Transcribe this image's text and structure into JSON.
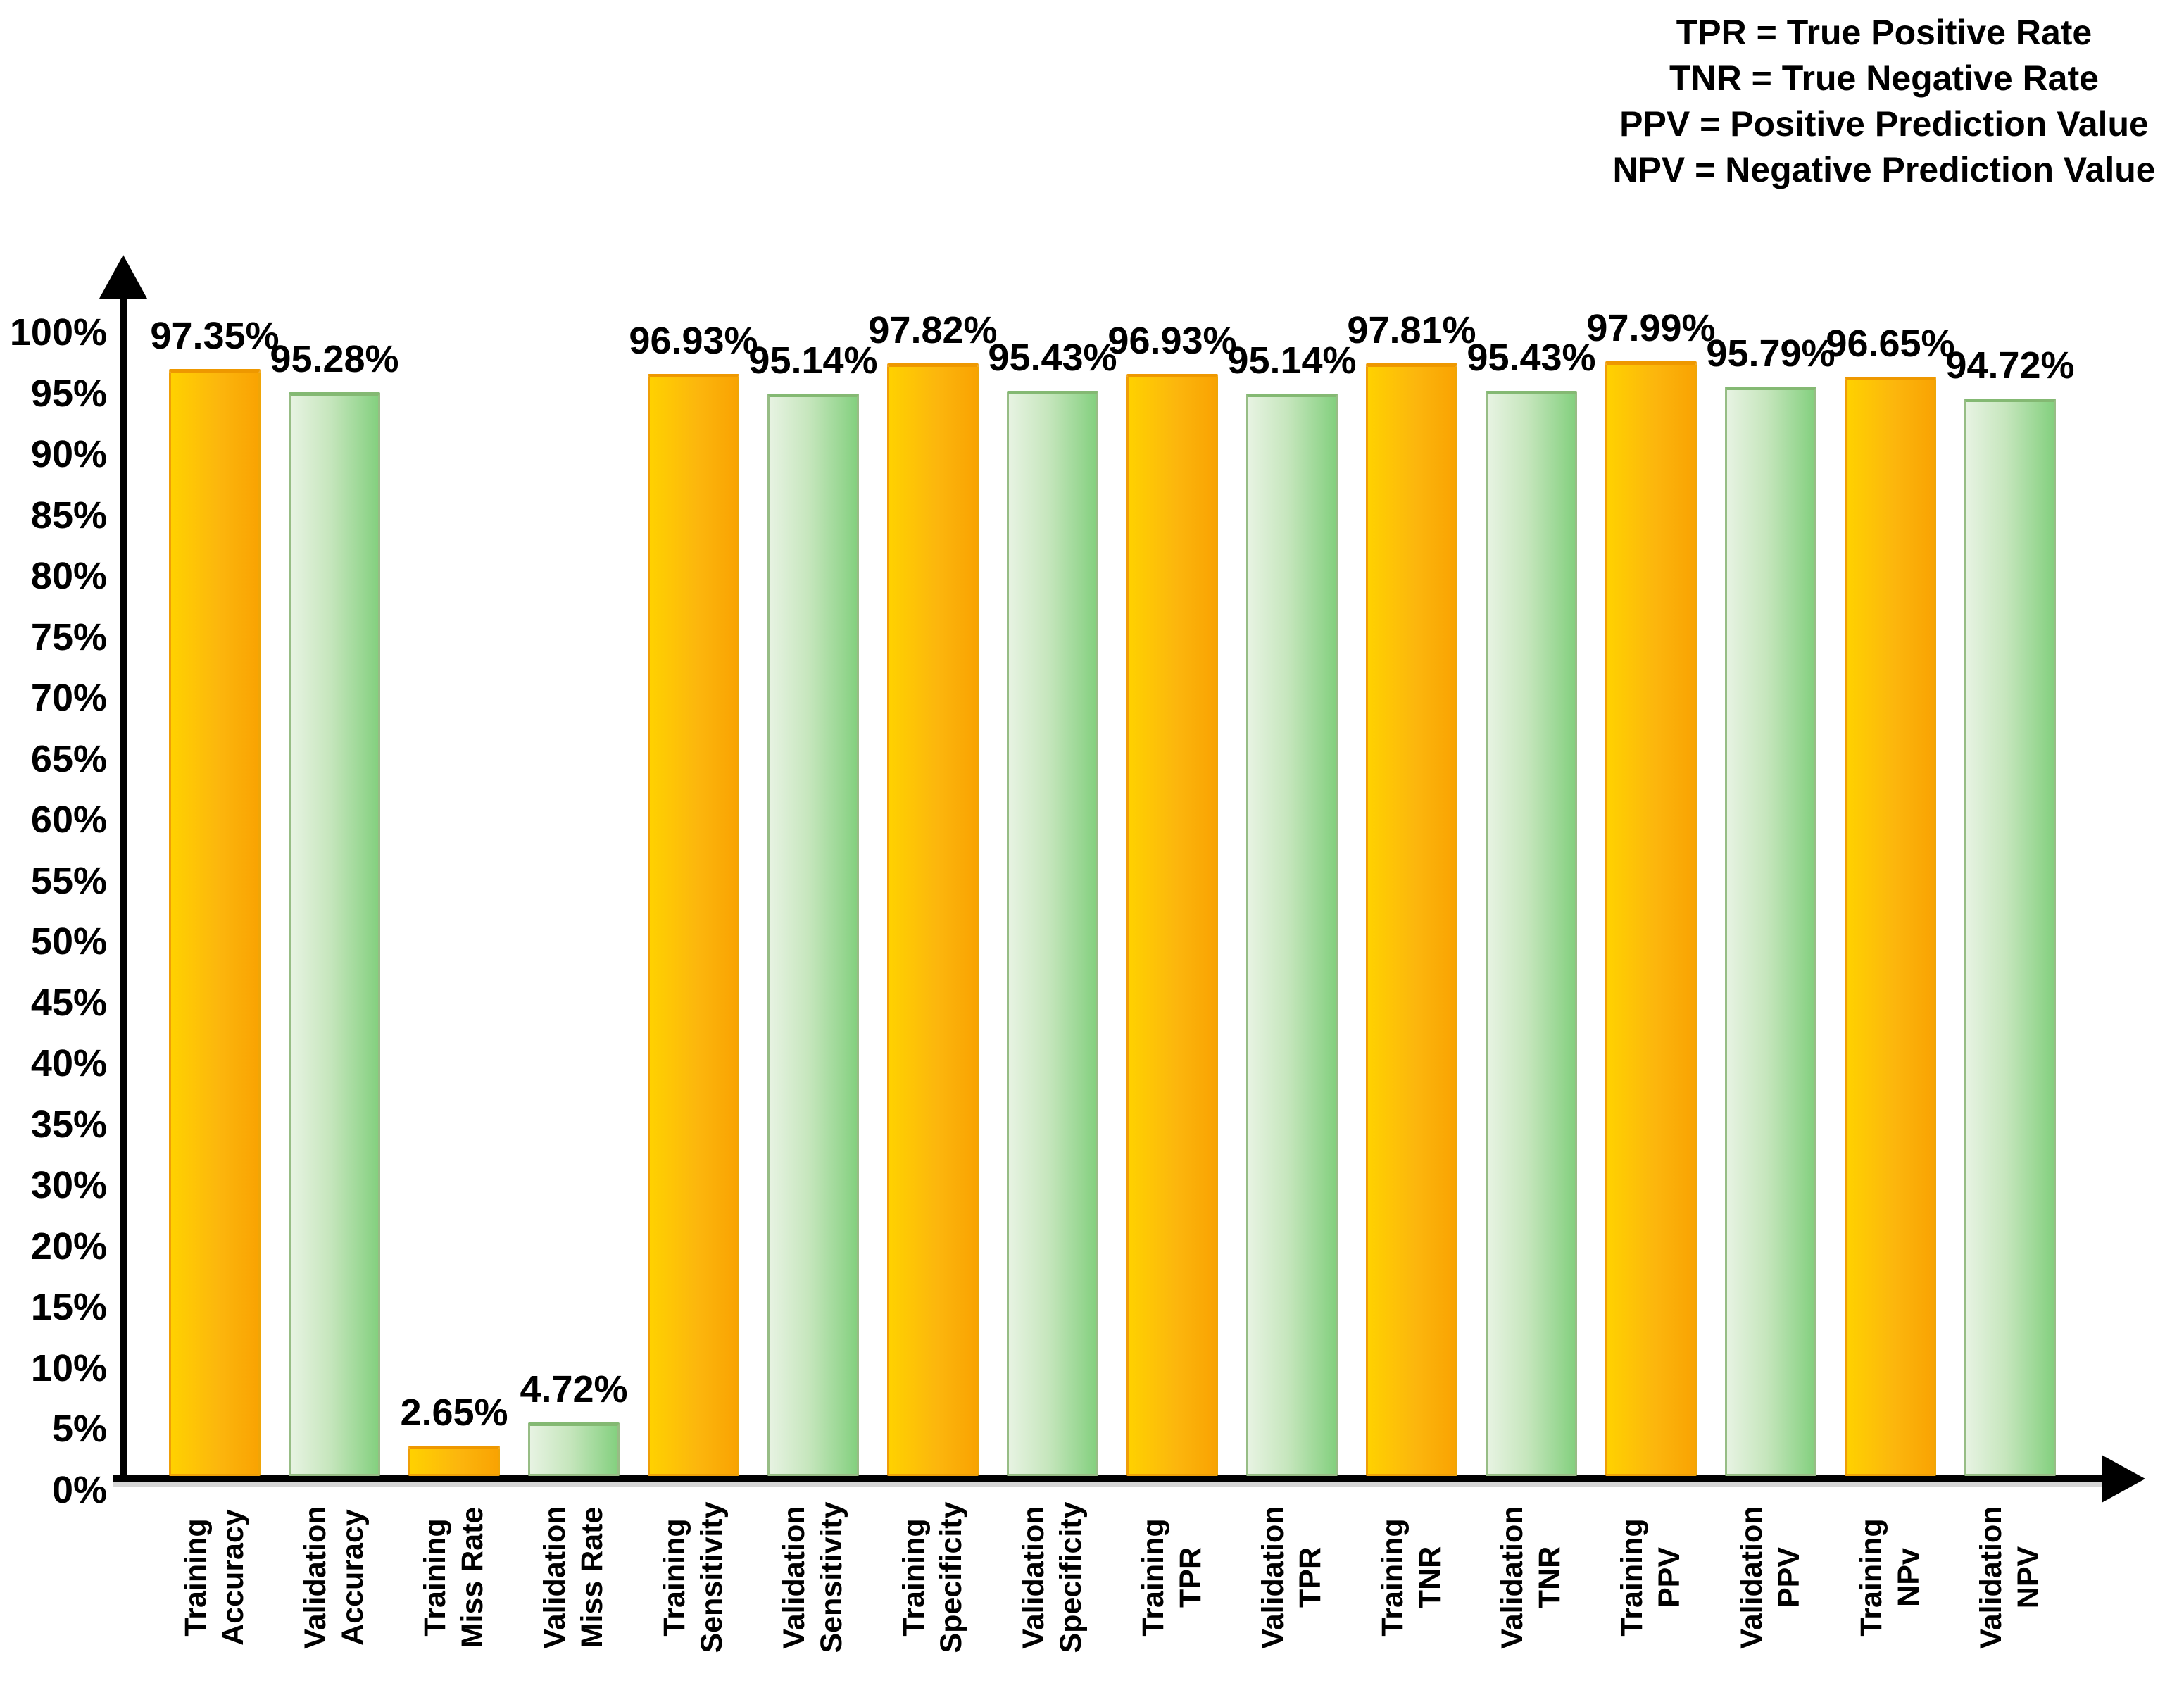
{
  "chart_data": {
    "type": "bar",
    "title": "",
    "xlabel": "",
    "ylabel": "",
    "ylim": [
      0,
      100
    ],
    "grid": false,
    "legend_position": "top-right",
    "legend_lines": [
      "TPR = True Positive Rate",
      "TNR = True Negative Rate",
      "PPV = Positive Prediction Value",
      "NPV = Negative Prediction Value"
    ],
    "y_ticks": [
      "100%",
      "95%",
      "90%",
      "85%",
      "80%",
      "75%",
      "70%",
      "65%",
      "60%",
      "55%",
      "50%",
      "45%",
      "40%",
      "35%",
      "30%",
      "20%",
      "15%",
      "10%",
      "5%",
      "0%"
    ],
    "series_names": [
      "Training",
      "Validation"
    ],
    "colors": {
      "training_gradient_start": "#FFD100",
      "training_gradient_end": "#F9A302",
      "validation_gradient_start": "#E7F3E2",
      "validation_gradient_end": "#84D07F",
      "training_border": "#EE9E08",
      "validation_border": "#97BD85",
      "axis": "#000000",
      "text": "#000000"
    },
    "bars": [
      {
        "label_line1": "Training",
        "label_line2": "Accuracy",
        "series": "Training",
        "value": 97.35,
        "display": "97.35%"
      },
      {
        "label_line1": "Validation",
        "label_line2": "Accuracy",
        "series": "Validation",
        "value": 95.28,
        "display": "95.28%"
      },
      {
        "label_line1": "Training",
        "label_line2": "Miss Rate",
        "series": "Training",
        "value": 2.65,
        "display": "2.65%"
      },
      {
        "label_line1": "Validation",
        "label_line2": "Miss Rate",
        "series": "Validation",
        "value": 4.72,
        "display": "4.72%"
      },
      {
        "label_line1": "Training",
        "label_line2": "Sensitivity",
        "series": "Training",
        "value": 96.93,
        "display": "96.93%"
      },
      {
        "label_line1": "Validation",
        "label_line2": "Sensitivity",
        "series": "Validation",
        "value": 95.14,
        "display": "95.14%"
      },
      {
        "label_line1": "Training",
        "label_line2": "Specificity",
        "series": "Training",
        "value": 97.82,
        "display": "97.82%"
      },
      {
        "label_line1": "Validation",
        "label_line2": "Specificity",
        "series": "Validation",
        "value": 95.43,
        "display": "95.43%"
      },
      {
        "label_line1": "Training",
        "label_line2": "TPR",
        "series": "Training",
        "value": 96.93,
        "display": "96.93%"
      },
      {
        "label_line1": "Validation",
        "label_line2": "TPR",
        "series": "Validation",
        "value": 95.14,
        "display": "95.14%"
      },
      {
        "label_line1": "Training",
        "label_line2": "TNR",
        "series": "Training",
        "value": 97.81,
        "display": "97.81%"
      },
      {
        "label_line1": "Validation",
        "label_line2": "TNR",
        "series": "Validation",
        "value": 95.43,
        "display": "95.43%"
      },
      {
        "label_line1": "Training",
        "label_line2": "PPV",
        "series": "Training",
        "value": 97.99,
        "display": "97.99%"
      },
      {
        "label_line1": "Validation",
        "label_line2": "PPV",
        "series": "Validation",
        "value": 95.79,
        "display": "95.79%"
      },
      {
        "label_line1": "Training",
        "label_line2": "NPv",
        "series": "Training",
        "value": 96.65,
        "display": "96.65%"
      },
      {
        "label_line1": "Validation",
        "label_line2": "NPV",
        "series": "Validation",
        "value": 94.72,
        "display": "94.72%"
      }
    ]
  }
}
